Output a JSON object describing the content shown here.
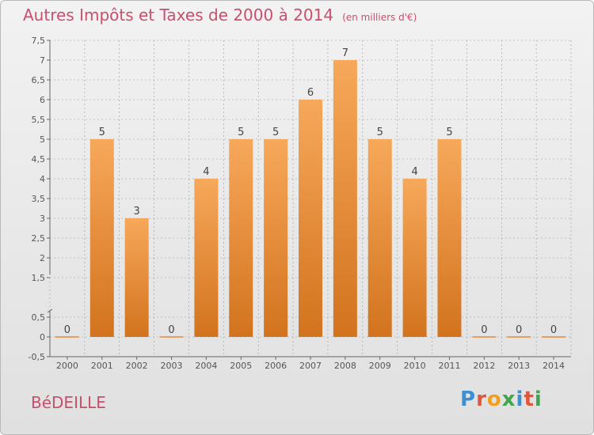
{
  "title": "Autres Impôts et Taxes de 2000 à 2014",
  "subtitle": "(en milliers d'€)",
  "place_name": "BéDEILLE",
  "logo": {
    "text": "Proxiti",
    "letter_colors": [
      "#3d8fd4",
      "#e0573b",
      "#f0a020",
      "#3ea64b",
      "#3d8fd4",
      "#e0573b",
      "#3ea64b"
    ]
  },
  "colors": {
    "bar_top": "#f7a85a",
    "bar_bottom": "#d2731e",
    "grid": "#9a9a9a",
    "axis_text": "#555555",
    "zero_line": "#e8893a"
  },
  "chart_data": {
    "type": "bar",
    "title": "Autres Impôts et Taxes de 2000 à 2014",
    "subtitle": "(en milliers d'€)",
    "xlabel": "",
    "ylabel": "",
    "categories": [
      "2000",
      "2001",
      "2002",
      "2003",
      "2004",
      "2005",
      "2006",
      "2007",
      "2008",
      "2009",
      "2010",
      "2011",
      "2012",
      "2013",
      "2014"
    ],
    "values": [
      0,
      5,
      3,
      0,
      4,
      5,
      5,
      6,
      7,
      5,
      4,
      5,
      0,
      0,
      0
    ],
    "data_labels": [
      "0",
      "5",
      "3",
      "0",
      "4",
      "5",
      "5",
      "6",
      "7",
      "5",
      "4",
      "5",
      "0",
      "0",
      "0"
    ],
    "ylim": [
      -0.5,
      7.5
    ],
    "yticks": [
      -0.5,
      0,
      0.5,
      1.5,
      2,
      2.5,
      3,
      3.5,
      4,
      4.5,
      5,
      5.5,
      6,
      6.5,
      7,
      7.5
    ],
    "ytick_labels": [
      "-0,5",
      "0",
      "0,5",
      "1,5",
      "2",
      "2,5",
      "3",
      "3,5",
      "4",
      "4,5",
      "5",
      "5,5",
      "6",
      "6,5",
      "7",
      "7,5"
    ],
    "grid": true,
    "axis_break_between": [
      0.5,
      1.5
    ]
  }
}
